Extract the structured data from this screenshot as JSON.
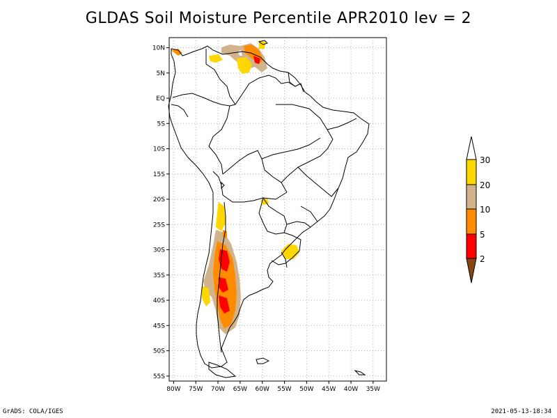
{
  "title": "GLDAS Soil Moisture Percentile APR2010 lev = 2",
  "footer": {
    "left": "GrADS: COLA/IGES",
    "right": "2021-05-13-18:34"
  },
  "map": {
    "lat_range": [
      -56,
      12
    ],
    "lon_range": [
      -81,
      -32
    ],
    "lat_ticks": [
      {
        "value": 10,
        "label": "10N"
      },
      {
        "value": 5,
        "label": "5N"
      },
      {
        "value": 0,
        "label": "EQ"
      },
      {
        "value": -5,
        "label": "5S"
      },
      {
        "value": -10,
        "label": "10S"
      },
      {
        "value": -15,
        "label": "15S"
      },
      {
        "value": -20,
        "label": "20S"
      },
      {
        "value": -25,
        "label": "25S"
      },
      {
        "value": -30,
        "label": "30S"
      },
      {
        "value": -35,
        "label": "35S"
      },
      {
        "value": -40,
        "label": "40S"
      },
      {
        "value": -45,
        "label": "45S"
      },
      {
        "value": -50,
        "label": "50S"
      },
      {
        "value": -55,
        "label": "55S"
      }
    ],
    "lon_ticks": [
      {
        "value": -80,
        "label": "80W"
      },
      {
        "value": -75,
        "label": "75W"
      },
      {
        "value": -70,
        "label": "70W"
      },
      {
        "value": -65,
        "label": "65W"
      },
      {
        "value": -60,
        "label": "60W"
      },
      {
        "value": -55,
        "label": "55W"
      },
      {
        "value": -50,
        "label": "50W"
      },
      {
        "value": -45,
        "label": "45W"
      },
      {
        "value": -40,
        "label": "40W"
      },
      {
        "value": -35,
        "label": "35W"
      }
    ],
    "grid": true
  },
  "legend": {
    "labels": [
      "30",
      "20",
      "10",
      "5",
      "2"
    ],
    "colors": {
      "above": "#ffffff",
      "c20_30": "#ffd700",
      "c10_20": "#d2b48c",
      "c5_10": "#ff8c00",
      "c2_5": "#ff0000",
      "below": "#8b4513"
    }
  }
}
